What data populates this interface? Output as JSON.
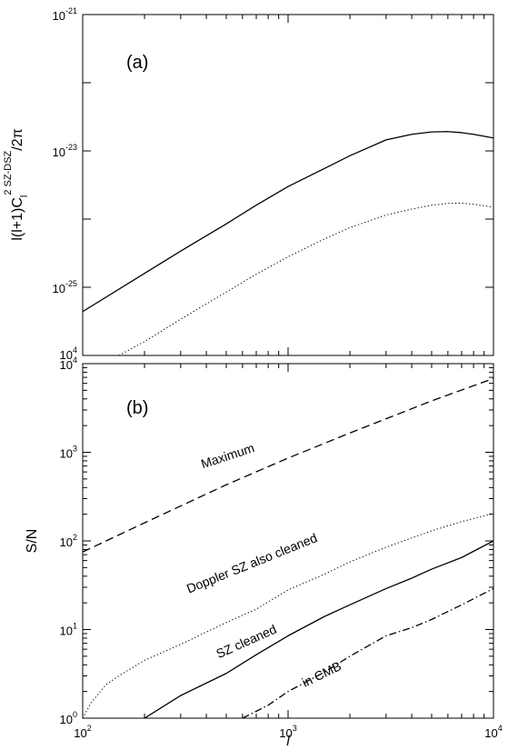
{
  "chart_data": [
    {
      "type": "line",
      "panel_label": "(a)",
      "ylabel": "l(l+1)C_l^{2 SZ-DSZ}/2π",
      "x_scale": "log",
      "y_scale": "log",
      "xlim": [
        100,
        10000
      ],
      "ylim": [
        1e-26,
        1e-21
      ],
      "y_tick_labels": [
        {
          "base": "10",
          "exp": "-21",
          "value": 1e-21
        },
        {
          "base": "10",
          "exp": "-23",
          "value": 1e-23
        },
        {
          "base": "10",
          "exp": "-25",
          "value": 1e-25
        }
      ],
      "y_minor_ticks": [
        1e-22,
        1e-24,
        1e-26
      ],
      "bottom_left_label": {
        "base": "10",
        "exp": "4"
      },
      "series": [
        {
          "style": "solid",
          "x": [
            100,
            200,
            300,
            500,
            700,
            1000,
            1500,
            2000,
            3000,
            4000,
            5000,
            6000,
            7000,
            8000,
            10000
          ],
          "y": [
            4.4e-26,
            1.6e-25,
            3.4e-25,
            8.5e-25,
            1.6e-24,
            3e-24,
            5.5e-24,
            8.5e-24,
            1.45e-23,
            1.75e-23,
            1.9e-23,
            1.92e-23,
            1.85e-23,
            1.75e-23,
            1.55e-23
          ]
        },
        {
          "style": "dotted",
          "x": [
            150,
            200,
            300,
            500,
            700,
            1000,
            1500,
            2000,
            3000,
            4000,
            5000,
            6000,
            7000,
            8000,
            10000
          ],
          "y": [
            1e-26,
            1.6e-26,
            3.4e-26,
            8.5e-26,
            1.55e-25,
            2.8e-25,
            5.1e-25,
            7.5e-25,
            1.15e-24,
            1.4e-24,
            1.6e-24,
            1.7e-24,
            1.72e-24,
            1.65e-24,
            1.5e-24
          ]
        }
      ]
    },
    {
      "type": "line",
      "panel_label": "(b)",
      "ylabel": "S/N",
      "xlabel": "l",
      "x_scale": "log",
      "y_scale": "log",
      "xlim": [
        100,
        10000
      ],
      "ylim": [
        1,
        10000
      ],
      "x_tick_labels": [
        {
          "base": "10",
          "exp": "2",
          "value": 100
        },
        {
          "base": "10",
          "exp": "3",
          "value": 1000
        },
        {
          "base": "10",
          "exp": "4",
          "value": 10000
        }
      ],
      "y_tick_labels": [
        {
          "base": "10",
          "exp": "0",
          "value": 1
        },
        {
          "base": "10",
          "exp": "1",
          "value": 10
        },
        {
          "base": "10",
          "exp": "2",
          "value": 100
        },
        {
          "base": "10",
          "exp": "3",
          "value": 1000
        },
        {
          "base": "10",
          "exp": "4",
          "value": 10000
        }
      ],
      "series": [
        {
          "name": "Maximum",
          "style": "dashed",
          "x": [
            100,
            200,
            500,
            1000,
            2000,
            5000,
            10000
          ],
          "y": [
            75,
            160,
            430,
            860,
            1650,
            3800,
            6800
          ]
        },
        {
          "name": "Doppler SZ also cleaned",
          "style": "dotted",
          "x": [
            100,
            110,
            130,
            150,
            200,
            300,
            500,
            700,
            1000,
            1500,
            2000,
            3000,
            5000,
            7000,
            10000
          ],
          "y": [
            1,
            1.5,
            2.4,
            3.0,
            4.5,
            6.8,
            12,
            17,
            28,
            42,
            58,
            85,
            130,
            165,
            205
          ]
        },
        {
          "name": "SZ cleaned",
          "style": "solid",
          "x": [
            200,
            300,
            500,
            700,
            1000,
            1500,
            2000,
            3000,
            4000,
            5000,
            7000,
            10000
          ],
          "y": [
            1,
            1.8,
            3.2,
            5.2,
            8.5,
            14,
            19,
            29,
            38,
            48,
            65,
            100
          ]
        },
        {
          "name": "in CMB",
          "style": "dash-dot",
          "x": [
            600,
            800,
            1000,
            1500,
            2000,
            3000,
            4000,
            5000,
            7000,
            10000
          ],
          "y": [
            1,
            1.4,
            2,
            3.3,
            5,
            8.5,
            10.5,
            13,
            19,
            29
          ]
        }
      ]
    }
  ]
}
